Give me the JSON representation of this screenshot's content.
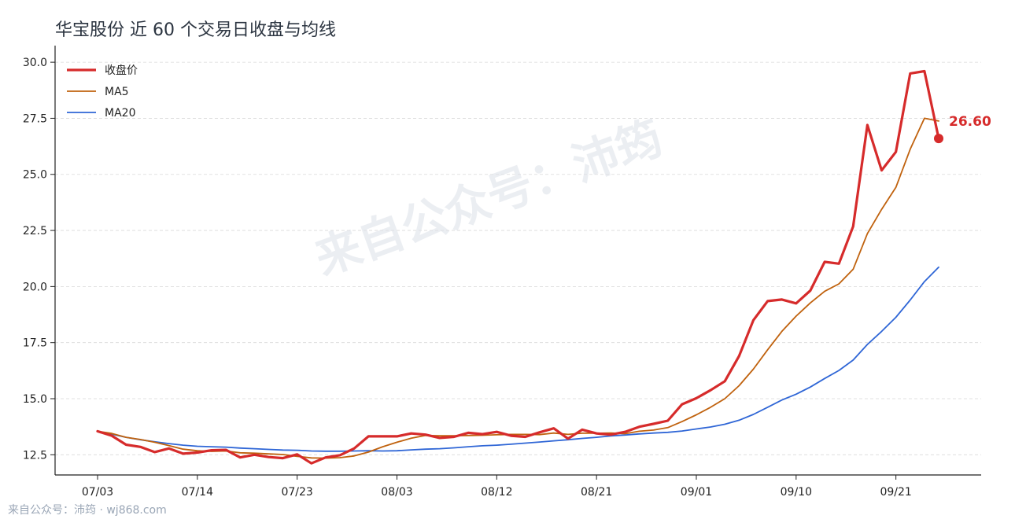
{
  "title": "华宝股份 近 60 个交易日收盘与均线",
  "footer": "来自公众号：沛筠 · wj868.com",
  "watermark": "来自公众号：沛筠",
  "colors": {
    "close": "#d62b2b",
    "ma5": "#c0620e",
    "ma20": "#2f66d6",
    "grid": "#d9d9d9",
    "watermark": "#dfe3ea"
  },
  "chart_data": {
    "type": "line",
    "title": "华宝股份 近 60 个交易日收盘与均线",
    "xlabel": "",
    "ylabel": "",
    "ylim": [
      11.6,
      30.6
    ],
    "yticks": [
      12.5,
      15.0,
      17.5,
      20.0,
      22.5,
      25.0,
      27.5,
      30.0
    ],
    "ytick_labels": [
      "12.5",
      "15.0",
      "17.5",
      "20.0",
      "22.5",
      "25.0",
      "27.5",
      "30.0"
    ],
    "xticks": [
      0,
      7,
      14,
      21,
      28,
      35,
      42,
      49,
      56
    ],
    "xtick_labels": [
      "07/03",
      "07/14",
      "07/23",
      "08/03",
      "08/12",
      "08/21",
      "09/01",
      "09/10",
      "09/21"
    ],
    "x_count": 60,
    "legend_position": "upper-left",
    "grid": "horizontal-dashed",
    "last_value_label": "26.60",
    "series": [
      {
        "name": "收盘价",
        "values": [
          13.55,
          13.35,
          12.95,
          12.85,
          12.62,
          12.78,
          12.55,
          12.6,
          12.7,
          12.72,
          12.38,
          12.5,
          12.4,
          12.35,
          12.52,
          12.12,
          12.38,
          12.48,
          12.78,
          13.32,
          13.32,
          13.32,
          13.45,
          13.4,
          13.25,
          13.3,
          13.48,
          13.42,
          13.52,
          13.35,
          13.3,
          13.5,
          13.68,
          13.22,
          13.62,
          13.45,
          13.4,
          13.52,
          13.75,
          13.88,
          14.02,
          14.75,
          15.02,
          15.38,
          15.78,
          16.9,
          18.5,
          19.35,
          19.42,
          19.25,
          19.82,
          21.1,
          21.02,
          22.68,
          27.2,
          25.18,
          26.0,
          29.5,
          29.6,
          26.6
        ]
      },
      {
        "name": "MA5",
        "values": [
          13.55,
          13.45,
          13.28,
          13.18,
          13.06,
          12.91,
          12.75,
          12.68,
          12.65,
          12.67,
          12.59,
          12.57,
          12.54,
          12.51,
          12.43,
          12.36,
          12.35,
          12.37,
          12.45,
          12.62,
          12.86,
          13.06,
          13.24,
          13.36,
          13.35,
          13.35,
          13.36,
          13.37,
          13.39,
          13.41,
          13.41,
          13.4,
          13.47,
          13.41,
          13.46,
          13.46,
          13.47,
          13.44,
          13.55,
          13.6,
          13.71,
          13.98,
          14.28,
          14.62,
          15.0,
          15.58,
          16.32,
          17.18,
          18.0,
          18.68,
          19.27,
          19.79,
          20.12,
          20.77,
          22.36,
          23.44,
          24.42,
          26.12,
          27.5,
          27.38
        ]
      },
      {
        "name": "MA20",
        "values": [
          13.55,
          13.42,
          13.28,
          13.17,
          13.08,
          13.0,
          12.93,
          12.88,
          12.86,
          12.84,
          12.8,
          12.77,
          12.74,
          12.71,
          12.7,
          12.67,
          12.66,
          12.66,
          12.67,
          12.68,
          12.67,
          12.68,
          12.72,
          12.75,
          12.77,
          12.81,
          12.86,
          12.9,
          12.93,
          12.97,
          13.02,
          13.07,
          13.12,
          13.17,
          13.23,
          13.28,
          13.34,
          13.38,
          13.43,
          13.47,
          13.5,
          13.56,
          13.65,
          13.74,
          13.86,
          14.04,
          14.3,
          14.62,
          14.94,
          15.2,
          15.52,
          15.9,
          16.26,
          16.72,
          17.42,
          18.0,
          18.63,
          19.4,
          20.22,
          20.86
        ]
      }
    ]
  }
}
